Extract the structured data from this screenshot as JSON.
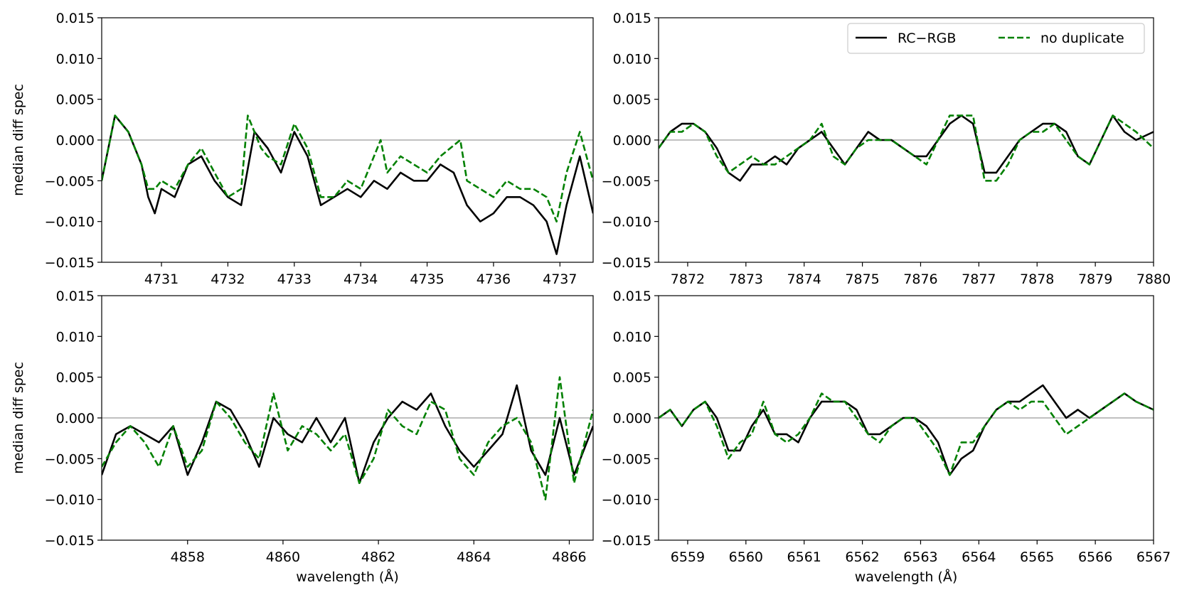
{
  "legend": {
    "entries": [
      {
        "label": "RC−RGB",
        "color": "#000000",
        "style": "solid"
      },
      {
        "label": "no duplicate",
        "color": "#008000",
        "style": "dashed"
      }
    ],
    "placement": "upper-right of top-right panel"
  },
  "chart_data": [
    {
      "type": "line",
      "title": "",
      "xlabel": "",
      "ylabel": "median diff spec",
      "xlim": [
        4730.1,
        4737.5
      ],
      "ylim": [
        -0.015,
        0.015
      ],
      "xticks": [
        "4731",
        "4732",
        "4733",
        "4734",
        "4735",
        "4736",
        "4737"
      ],
      "yticks": [
        "0.015",
        "0.010",
        "0.005",
        "0.000",
        "−0.005",
        "−0.010",
        "−0.015"
      ],
      "reference_line_y": 0,
      "series": [
        {
          "name": "RC−RGB",
          "color": "#000000",
          "dash": "solid",
          "x": [
            4730.1,
            4730.3,
            4730.5,
            4730.7,
            4730.8,
            4730.9,
            4731.0,
            4731.2,
            4731.4,
            4731.6,
            4731.8,
            4732.0,
            4732.2,
            4732.4,
            4732.5,
            4732.6,
            4732.8,
            4733.0,
            4733.2,
            4733.3,
            4733.4,
            4733.6,
            4733.8,
            4734.0,
            4734.2,
            4734.4,
            4734.6,
            4734.8,
            4735.0,
            4735.2,
            4735.4,
            4735.6,
            4735.8,
            4736.0,
            4736.2,
            4736.4,
            4736.6,
            4736.8,
            4736.95,
            4737.1,
            4737.3,
            4737.5
          ],
          "y": [
            -0.005,
            0.003,
            0.001,
            -0.003,
            -0.007,
            -0.009,
            -0.006,
            -0.007,
            -0.003,
            -0.002,
            -0.005,
            -0.007,
            -0.008,
            0.001,
            0.0,
            -0.001,
            -0.004,
            0.001,
            -0.002,
            -0.005,
            -0.008,
            -0.007,
            -0.006,
            -0.007,
            -0.005,
            -0.006,
            -0.004,
            -0.005,
            -0.005,
            -0.003,
            -0.004,
            -0.008,
            -0.01,
            -0.009,
            -0.007,
            -0.007,
            -0.008,
            -0.01,
            -0.014,
            -0.008,
            -0.002,
            -0.009
          ]
        },
        {
          "name": "no duplicate",
          "color": "#008000",
          "dash": "dashed",
          "x": [
            4730.1,
            4730.3,
            4730.5,
            4730.7,
            4730.8,
            4730.9,
            4731.0,
            4731.2,
            4731.4,
            4731.6,
            4731.8,
            4732.0,
            4732.2,
            4732.3,
            4732.5,
            4732.6,
            4732.8,
            4733.0,
            4733.2,
            4733.3,
            4733.4,
            4733.6,
            4733.8,
            4734.0,
            4734.3,
            4734.4,
            4734.6,
            4734.8,
            4735.0,
            4735.2,
            4735.5,
            4735.6,
            4735.8,
            4736.0,
            4736.2,
            4736.4,
            4736.6,
            4736.8,
            4736.95,
            4737.1,
            4737.3,
            4737.5
          ],
          "y": [
            -0.005,
            0.003,
            0.001,
            -0.003,
            -0.006,
            -0.006,
            -0.005,
            -0.006,
            -0.003,
            -0.001,
            -0.004,
            -0.007,
            -0.006,
            0.003,
            -0.001,
            -0.002,
            -0.003,
            0.002,
            -0.001,
            -0.004,
            -0.007,
            -0.007,
            -0.005,
            -0.006,
            0.0,
            -0.004,
            -0.002,
            -0.003,
            -0.004,
            -0.002,
            0.0,
            -0.005,
            -0.006,
            -0.007,
            -0.005,
            -0.006,
            -0.006,
            -0.007,
            -0.01,
            -0.004,
            0.001,
            -0.005
          ]
        }
      ]
    },
    {
      "type": "line",
      "title": "",
      "xlabel": "",
      "ylabel": "",
      "xlim": [
        7871.5,
        7880
      ],
      "ylim": [
        -0.015,
        0.015
      ],
      "xticks": [
        "7872",
        "7873",
        "7874",
        "7875",
        "7876",
        "7877",
        "7878",
        "7879",
        "7880"
      ],
      "yticks": [
        "0.015",
        "0.010",
        "0.005",
        "0.000",
        "−0.005",
        "−0.010",
        "−0.015"
      ],
      "reference_line_y": 0,
      "series": [
        {
          "name": "RC−RGB",
          "color": "#000000",
          "dash": "solid",
          "x": [
            7871.5,
            7871.7,
            7871.9,
            7872.1,
            7872.3,
            7872.5,
            7872.7,
            7872.9,
            7873.1,
            7873.3,
            7873.5,
            7873.7,
            7873.9,
            7874.1,
            7874.3,
            7874.5,
            7874.7,
            7874.9,
            7875.1,
            7875.3,
            7875.5,
            7875.7,
            7875.9,
            7876.1,
            7876.3,
            7876.5,
            7876.7,
            7876.9,
            7877.1,
            7877.3,
            7877.5,
            7877.7,
            7877.9,
            7878.1,
            7878.3,
            7878.5,
            7878.7,
            7878.9,
            7879.1,
            7879.3,
            7879.5,
            7879.7,
            7880.0
          ],
          "y": [
            -0.001,
            0.001,
            0.002,
            0.002,
            0.001,
            -0.001,
            -0.004,
            -0.005,
            -0.003,
            -0.003,
            -0.002,
            -0.003,
            -0.001,
            0.0,
            0.001,
            -0.001,
            -0.003,
            -0.001,
            0.001,
            0.0,
            0.0,
            -0.001,
            -0.002,
            -0.002,
            0.0,
            0.002,
            0.003,
            0.002,
            -0.004,
            -0.004,
            -0.002,
            0.0,
            0.001,
            0.002,
            0.002,
            0.001,
            -0.002,
            -0.003,
            0.0,
            0.003,
            0.001,
            0.0,
            0.001
          ]
        },
        {
          "name": "no duplicate",
          "color": "#008000",
          "dash": "dashed",
          "x": [
            7871.5,
            7871.7,
            7871.9,
            7872.1,
            7872.3,
            7872.5,
            7872.7,
            7872.9,
            7873.1,
            7873.3,
            7873.5,
            7873.7,
            7873.9,
            7874.1,
            7874.3,
            7874.5,
            7874.7,
            7874.9,
            7875.1,
            7875.3,
            7875.5,
            7875.7,
            7875.9,
            7876.1,
            7876.3,
            7876.5,
            7876.7,
            7876.9,
            7877.1,
            7877.3,
            7877.5,
            7877.7,
            7877.9,
            7878.1,
            7878.3,
            7878.5,
            7878.7,
            7878.9,
            7879.1,
            7879.3,
            7879.5,
            7879.7,
            7880.0
          ],
          "y": [
            -0.001,
            0.001,
            0.001,
            0.002,
            0.001,
            -0.002,
            -0.004,
            -0.003,
            -0.002,
            -0.003,
            -0.003,
            -0.002,
            -0.001,
            0.0,
            0.002,
            -0.002,
            -0.003,
            -0.001,
            0.0,
            0.0,
            0.0,
            -0.001,
            -0.002,
            -0.003,
            0.0,
            0.003,
            0.003,
            0.003,
            -0.005,
            -0.005,
            -0.003,
            0.0,
            0.001,
            0.001,
            0.002,
            0.0,
            -0.002,
            -0.003,
            0.0,
            0.003,
            0.002,
            0.001,
            -0.001
          ]
        }
      ]
    },
    {
      "type": "line",
      "title": "",
      "xlabel": "wavelength (Å)",
      "ylabel": "median diff spec",
      "xlim": [
        4856.2,
        4866.5
      ],
      "ylim": [
        -0.015,
        0.015
      ],
      "xticks": [
        "4858",
        "4860",
        "4862",
        "4864",
        "4866"
      ],
      "yticks": [
        "0.015",
        "0.010",
        "0.005",
        "0.000",
        "−0.005",
        "−0.010",
        "−0.015"
      ],
      "reference_line_y": 0,
      "series": [
        {
          "name": "RC−RGB",
          "color": "#000000",
          "dash": "solid",
          "x": [
            4856.2,
            4856.5,
            4856.8,
            4857.1,
            4857.4,
            4857.7,
            4858.0,
            4858.3,
            4858.6,
            4858.9,
            4859.2,
            4859.5,
            4859.8,
            4860.1,
            4860.4,
            4860.7,
            4861.0,
            4861.3,
            4861.6,
            4861.9,
            4862.2,
            4862.5,
            4862.8,
            4863.1,
            4863.4,
            4863.7,
            4864.0,
            4864.3,
            4864.6,
            4864.9,
            4865.2,
            4865.5,
            4865.8,
            4866.1,
            4866.5
          ],
          "y": [
            -0.007,
            -0.002,
            -0.001,
            -0.002,
            -0.003,
            -0.001,
            -0.007,
            -0.003,
            0.002,
            0.001,
            -0.002,
            -0.006,
            0.0,
            -0.002,
            -0.003,
            0.0,
            -0.003,
            0.0,
            -0.008,
            -0.003,
            0.0,
            0.002,
            0.001,
            0.003,
            -0.001,
            -0.004,
            -0.006,
            -0.004,
            -0.002,
            0.004,
            -0.004,
            -0.007,
            0.0,
            -0.007,
            -0.001
          ]
        },
        {
          "name": "no duplicate",
          "color": "#008000",
          "dash": "dashed",
          "x": [
            4856.2,
            4856.5,
            4856.8,
            4857.1,
            4857.4,
            4857.7,
            4858.0,
            4858.3,
            4858.6,
            4858.9,
            4859.2,
            4859.5,
            4859.8,
            4860.1,
            4860.4,
            4860.7,
            4861.0,
            4861.3,
            4861.6,
            4861.9,
            4862.2,
            4862.5,
            4862.8,
            4863.1,
            4863.4,
            4863.7,
            4864.0,
            4864.3,
            4864.6,
            4864.9,
            4865.2,
            4865.5,
            4865.8,
            4866.1,
            4866.5
          ],
          "y": [
            -0.006,
            -0.003,
            -0.001,
            -0.003,
            -0.006,
            -0.001,
            -0.006,
            -0.004,
            0.002,
            0.0,
            -0.003,
            -0.005,
            0.003,
            -0.004,
            -0.001,
            -0.002,
            -0.004,
            -0.002,
            -0.008,
            -0.005,
            0.001,
            -0.001,
            -0.002,
            0.002,
            0.001,
            -0.005,
            -0.007,
            -0.003,
            -0.001,
            0.0,
            -0.003,
            -0.01,
            0.005,
            -0.008,
            0.001
          ]
        }
      ]
    },
    {
      "type": "line",
      "title": "",
      "xlabel": "wavelength (Å)",
      "ylabel": "",
      "xlim": [
        6558.5,
        6567
      ],
      "ylim": [
        -0.015,
        0.015
      ],
      "xticks": [
        "6559",
        "6560",
        "6561",
        "6562",
        "6563",
        "6564",
        "6565",
        "6566",
        "6567"
      ],
      "yticks": [
        "0.015",
        "0.010",
        "0.005",
        "0.000",
        "−0.005",
        "−0.010",
        "−0.015"
      ],
      "reference_line_y": 0,
      "series": [
        {
          "name": "RC−RGB",
          "color": "#000000",
          "dash": "solid",
          "x": [
            6558.5,
            6558.7,
            6558.9,
            6559.1,
            6559.3,
            6559.5,
            6559.7,
            6559.9,
            6560.1,
            6560.3,
            6560.5,
            6560.7,
            6560.9,
            6561.1,
            6561.3,
            6561.5,
            6561.7,
            6561.9,
            6562.1,
            6562.3,
            6562.5,
            6562.7,
            6562.9,
            6563.1,
            6563.3,
            6563.5,
            6563.7,
            6563.9,
            6564.1,
            6564.3,
            6564.5,
            6564.7,
            6564.9,
            6565.1,
            6565.3,
            6565.5,
            6565.7,
            6565.9,
            6566.1,
            6566.3,
            6566.5,
            6566.7,
            6567.0
          ],
          "y": [
            0.0,
            0.001,
            -0.001,
            0.001,
            0.002,
            0.0,
            -0.004,
            -0.004,
            -0.001,
            0.001,
            -0.002,
            -0.002,
            -0.003,
            0.0,
            0.002,
            0.002,
            0.002,
            0.001,
            -0.002,
            -0.002,
            -0.001,
            0.0,
            0.0,
            -0.001,
            -0.003,
            -0.007,
            -0.005,
            -0.004,
            -0.001,
            0.001,
            0.002,
            0.002,
            0.003,
            0.004,
            0.002,
            0.0,
            0.001,
            0.0,
            0.001,
            0.002,
            0.003,
            0.002,
            0.001
          ]
        },
        {
          "name": "no duplicate",
          "color": "#008000",
          "dash": "dashed",
          "x": [
            6558.5,
            6558.7,
            6558.9,
            6559.1,
            6559.3,
            6559.5,
            6559.7,
            6559.9,
            6560.1,
            6560.3,
            6560.5,
            6560.7,
            6560.9,
            6561.1,
            6561.3,
            6561.5,
            6561.7,
            6561.9,
            6562.1,
            6562.3,
            6562.5,
            6562.7,
            6562.9,
            6563.1,
            6563.3,
            6563.5,
            6563.7,
            6563.9,
            6564.1,
            6564.3,
            6564.5,
            6564.7,
            6564.9,
            6565.1,
            6565.3,
            6565.5,
            6565.7,
            6565.9,
            6566.1,
            6566.3,
            6566.5,
            6566.7,
            6567.0
          ],
          "y": [
            0.0,
            0.001,
            -0.001,
            0.001,
            0.002,
            -0.001,
            -0.005,
            -0.003,
            -0.002,
            0.002,
            -0.002,
            -0.003,
            -0.002,
            0.0,
            0.003,
            0.002,
            0.002,
            0.0,
            -0.002,
            -0.003,
            -0.001,
            0.0,
            0.0,
            -0.002,
            -0.004,
            -0.007,
            -0.003,
            -0.003,
            -0.001,
            0.001,
            0.002,
            0.001,
            0.002,
            0.002,
            0.0,
            -0.002,
            -0.001,
            0.0,
            0.001,
            0.002,
            0.003,
            0.002,
            0.001
          ]
        }
      ]
    }
  ]
}
